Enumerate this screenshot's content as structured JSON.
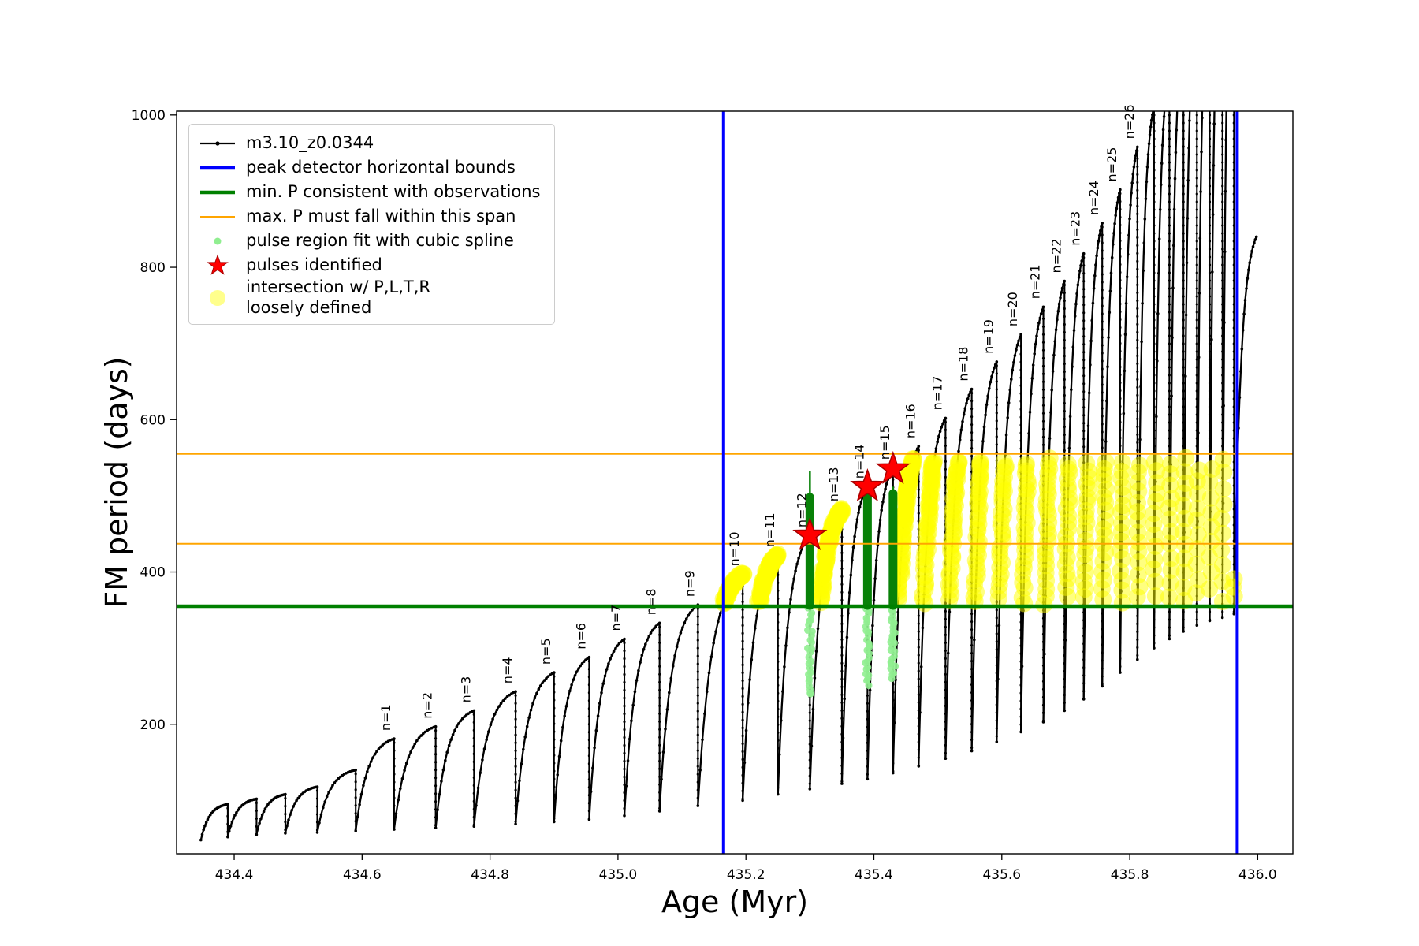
{
  "chart_data": {
    "type": "line",
    "title": "",
    "xlabel": "Age (Myr)",
    "ylabel": "FM period (days)",
    "xlim": [
      434.31,
      436.055
    ],
    "ylim": [
      30,
      1005
    ],
    "xticks": [
      434.4,
      434.6,
      434.8,
      435.0,
      435.2,
      435.4,
      435.6,
      435.8,
      436.0
    ],
    "yticks": [
      200,
      400,
      600,
      800,
      1000
    ],
    "grid": false,
    "series_name": "m3.10_z0.0344",
    "series_color": "#000000",
    "pulses_note": "each pulse: [age_at_peak_Myr, peak_period_days, trough_period_at_start_days, label]",
    "pulses": [
      [
        434.39,
        95,
        48,
        ""
      ],
      [
        434.435,
        102,
        52,
        ""
      ],
      [
        434.48,
        108,
        55,
        ""
      ],
      [
        434.53,
        118,
        57,
        ""
      ],
      [
        434.59,
        140,
        58,
        ""
      ],
      [
        434.65,
        181,
        60,
        "n=1"
      ],
      [
        434.715,
        197,
        62,
        "n=2"
      ],
      [
        434.775,
        218,
        64,
        "n=3"
      ],
      [
        434.84,
        243,
        66,
        "n=4"
      ],
      [
        434.9,
        268,
        69,
        "n=5"
      ],
      [
        434.955,
        288,
        72,
        "n=6"
      ],
      [
        435.01,
        312,
        75,
        "n=7"
      ],
      [
        435.065,
        333,
        80,
        "n=8"
      ],
      [
        435.125,
        357,
        86,
        "n=9"
      ],
      [
        435.195,
        397,
        93,
        "n=10"
      ],
      [
        435.25,
        422,
        100,
        "n=11"
      ],
      [
        435.3,
        448,
        108,
        "n=12"
      ],
      [
        435.35,
        482,
        115,
        "n=13"
      ],
      [
        435.39,
        512,
        122,
        "n=14"
      ],
      [
        435.43,
        537,
        128,
        "n=15"
      ],
      [
        435.47,
        565,
        136,
        "n=16"
      ],
      [
        435.512,
        602,
        145,
        "n=17"
      ],
      [
        435.553,
        640,
        155,
        "n=18"
      ],
      [
        435.592,
        676,
        165,
        "n=19"
      ],
      [
        435.63,
        712,
        177,
        "n=20"
      ],
      [
        435.665,
        748,
        190,
        "n=21"
      ],
      [
        435.698,
        782,
        203,
        "n=22"
      ],
      [
        435.728,
        818,
        218,
        "n=23"
      ],
      [
        435.757,
        858,
        233,
        "n=24"
      ],
      [
        435.785,
        902,
        250,
        "n=25"
      ],
      [
        435.812,
        958,
        268,
        "n=26"
      ],
      [
        435.838,
        1012,
        285,
        ""
      ],
      [
        435.862,
        1065,
        300,
        ""
      ],
      [
        435.884,
        1115,
        312,
        ""
      ],
      [
        435.905,
        1165,
        322,
        ""
      ],
      [
        435.925,
        1215,
        330,
        ""
      ],
      [
        435.945,
        1265,
        336,
        ""
      ],
      [
        435.963,
        1315,
        340,
        ""
      ]
    ],
    "final_rise": {
      "x_end": 435.998,
      "y_start": 345,
      "y_end": 840
    },
    "vlines": {
      "color": "#0000ff",
      "xs": [
        435.165,
        435.968
      ],
      "label": "peak detector horizontal bounds"
    },
    "hline_green": {
      "color": "#008000",
      "y": 355,
      "label": "min. P consistent with observations"
    },
    "hlines_orange": {
      "color": "#ffa500",
      "ys": [
        555,
        437
      ],
      "label": "max. P must fall within this span"
    },
    "spline_points": {
      "color": "#90ee90",
      "label": "pulse region fit with cubic spline",
      "columns": [
        {
          "x": 435.3,
          "y0": 238,
          "y1": 352
        },
        {
          "x": 435.39,
          "y0": 252,
          "y1": 352
        },
        {
          "x": 435.43,
          "y0": 262,
          "y1": 352
        }
      ]
    },
    "green_bars": {
      "color": "#088108",
      "bars": [
        {
          "x": 435.3,
          "y0": 356,
          "y1": 498,
          "tip": 532
        },
        {
          "x": 435.39,
          "y0": 356,
          "y1": 505,
          "tip": 518
        },
        {
          "x": 435.43,
          "y0": 356,
          "y1": 503,
          "tip": 512
        }
      ]
    },
    "stars": {
      "color": "#ff0000",
      "label": "pulses identified",
      "points": [
        [
          435.3,
          448
        ],
        [
          435.39,
          512
        ],
        [
          435.43,
          535
        ]
      ]
    },
    "yellow_band": {
      "color": "#ffff00",
      "label": "intersection w/ P,L,T,R loosely defined",
      "y_min": 355,
      "y_max": 552,
      "x_min": 435.11,
      "x_max": 435.964,
      "exclude_labels": [
        "n=12",
        "n=14",
        "n=15"
      ]
    }
  },
  "legend": {
    "items": [
      {
        "label": "m3.10_z0.0344",
        "label2": "",
        "marker": "line-dot-black"
      },
      {
        "label": "peak detector horizontal bounds",
        "label2": "",
        "marker": "line-blue-thick"
      },
      {
        "label": "min. P consistent with observations",
        "label2": "",
        "marker": "line-green-thick"
      },
      {
        "label": "max. P must fall within this span",
        "label2": "",
        "marker": "line-orange"
      },
      {
        "label": "pulse region fit with cubic spline",
        "label2": "",
        "marker": "dot-lightgreen"
      },
      {
        "label": "pulses identified",
        "label2": "",
        "marker": "star-red"
      },
      {
        "label": "intersection w/ P,L,T,R",
        "label2": "loosely defined",
        "marker": "dot-paleyellow"
      }
    ]
  }
}
